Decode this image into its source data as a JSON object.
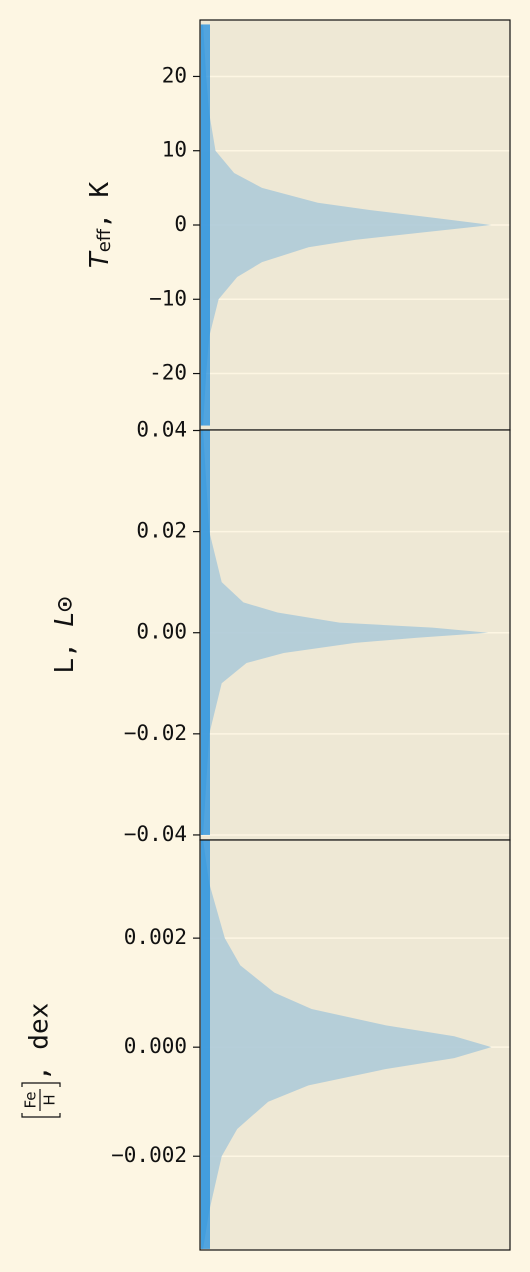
{
  "chart_data": [
    {
      "type": "density",
      "ylabel": [
        {
          "text": "T",
          "style": "italic"
        },
        {
          "text": "eff",
          "style": "sub"
        },
        {
          "text": ", K"
        }
      ],
      "ylim": [
        -27.6,
        27.6
      ],
      "yticks": [
        -20,
        {
          "value": -10,
          "label": "−10"
        },
        0,
        10,
        20
      ],
      "xlim": [
        0,
        1
      ],
      "color": "#aecbd8",
      "grid": true,
      "y": [
        -27,
        -20,
        -15,
        -10,
        -7,
        -5,
        -3,
        -2,
        -1,
        0,
        1,
        2,
        3,
        5,
        7,
        10,
        15,
        20,
        27
      ],
      "density": [
        0.01,
        0.02,
        0.03,
        0.06,
        0.12,
        0.2,
        0.35,
        0.5,
        0.72,
        0.94,
        0.75,
        0.55,
        0.38,
        0.2,
        0.11,
        0.05,
        0.03,
        0.02,
        0.01
      ]
    },
    {
      "type": "density",
      "ylabel": [
        {
          "text": "L, "
        },
        {
          "text": "L",
          "style": "italic"
        },
        {
          "text": "⊙"
        }
      ],
      "ylim": [
        -0.041,
        0.0401
      ],
      "yticks": [
        {
          "value": -0.04,
          "label": "−0.04"
        },
        {
          "value": -0.02,
          "label": "−0.02"
        },
        {
          "value": 0,
          "label": "0.00"
        },
        0.02,
        0.04
      ],
      "xlim": [
        0,
        1
      ],
      "color": "#aecbd8",
      "grid": true,
      "y": [
        -0.04,
        -0.03,
        -0.02,
        -0.01,
        -0.006,
        -0.004,
        -0.002,
        -0.001,
        0,
        0.001,
        0.002,
        0.004,
        0.006,
        0.01,
        0.02,
        0.03,
        0.04
      ],
      "density": [
        0.01,
        0.02,
        0.03,
        0.07,
        0.15,
        0.27,
        0.5,
        0.7,
        0.93,
        0.75,
        0.45,
        0.25,
        0.14,
        0.07,
        0.03,
        0.02,
        0.01
      ]
    },
    {
      "type": "density",
      "ylabel": [
        {
          "text": "Fe",
          "style": "num"
        },
        {
          "text": "H",
          "style": "den"
        },
        {
          "text": ", dex"
        }
      ],
      "ylim": [
        -0.00372,
        0.0038
      ],
      "yticks": [
        {
          "value": -0.002,
          "label": "−0.002"
        },
        {
          "value": 0,
          "label": "0.000"
        },
        0.002
      ],
      "xlim": [
        0,
        1
      ],
      "color": "#aecbd8",
      "grid": true,
      "y": [
        -0.0037,
        -0.003,
        -0.002,
        -0.0015,
        -0.001,
        -0.0007,
        -0.0004,
        -0.0002,
        0,
        0.0002,
        0.0004,
        0.0007,
        0.001,
        0.0015,
        0.002,
        0.003,
        0.0038
      ],
      "density": [
        0.01,
        0.03,
        0.07,
        0.12,
        0.22,
        0.35,
        0.6,
        0.82,
        0.94,
        0.82,
        0.6,
        0.36,
        0.24,
        0.13,
        0.08,
        0.03,
        0.01
      ]
    }
  ]
}
